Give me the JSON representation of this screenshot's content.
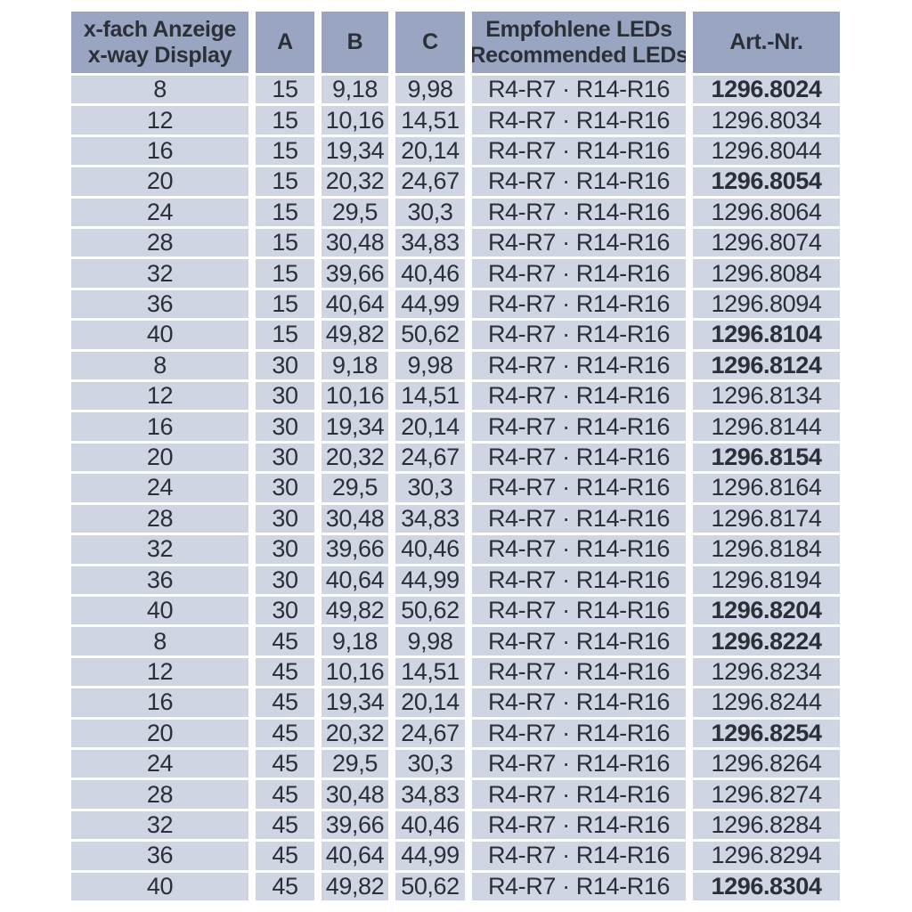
{
  "colors": {
    "header_bg": "#9aa6c1",
    "row_bg": "#cfd5e2",
    "text": "#2b2f38",
    "page_bg": "#ffffff"
  },
  "table": {
    "header": {
      "display_line1": "x-fach Anzeige",
      "display_line2": "x-way Display",
      "a": "A",
      "b": "B",
      "c": "C",
      "leds_line1": "Empfohlene LEDs",
      "leds_line2": "Recommended LEDs",
      "art": "Art.-Nr."
    },
    "rows": [
      {
        "display": "8",
        "a": "15",
        "b": "9,18",
        "c": "9,98",
        "leds": "R4-R7 · R14-R16",
        "art": "1296.8024",
        "bold": true
      },
      {
        "display": "12",
        "a": "15",
        "b": "10,16",
        "c": "14,51",
        "leds": "R4-R7 · R14-R16",
        "art": "1296.8034",
        "bold": false
      },
      {
        "display": "16",
        "a": "15",
        "b": "19,34",
        "c": "20,14",
        "leds": "R4-R7 · R14-R16",
        "art": "1296.8044",
        "bold": false
      },
      {
        "display": "20",
        "a": "15",
        "b": "20,32",
        "c": "24,67",
        "leds": "R4-R7 · R14-R16",
        "art": "1296.8054",
        "bold": true
      },
      {
        "display": "24",
        "a": "15",
        "b": "29,5",
        "c": "30,3",
        "leds": "R4-R7 · R14-R16",
        "art": "1296.8064",
        "bold": false
      },
      {
        "display": "28",
        "a": "15",
        "b": "30,48",
        "c": "34,83",
        "leds": "R4-R7 · R14-R16",
        "art": "1296.8074",
        "bold": false
      },
      {
        "display": "32",
        "a": "15",
        "b": "39,66",
        "c": "40,46",
        "leds": "R4-R7 · R14-R16",
        "art": "1296.8084",
        "bold": false
      },
      {
        "display": "36",
        "a": "15",
        "b": "40,64",
        "c": "44,99",
        "leds": "R4-R7 · R14-R16",
        "art": "1296.8094",
        "bold": false
      },
      {
        "display": "40",
        "a": "15",
        "b": "49,82",
        "c": "50,62",
        "leds": "R4-R7 · R14-R16",
        "art": "1296.8104",
        "bold": true
      },
      {
        "display": "8",
        "a": "30",
        "b": "9,18",
        "c": "9,98",
        "leds": "R4-R7 · R14-R16",
        "art": "1296.8124",
        "bold": true
      },
      {
        "display": "12",
        "a": "30",
        "b": "10,16",
        "c": "14,51",
        "leds": "R4-R7 · R14-R16",
        "art": "1296.8134",
        "bold": false
      },
      {
        "display": "16",
        "a": "30",
        "b": "19,34",
        "c": "20,14",
        "leds": "R4-R7 · R14-R16",
        "art": "1296.8144",
        "bold": false
      },
      {
        "display": "20",
        "a": "30",
        "b": "20,32",
        "c": "24,67",
        "leds": "R4-R7 · R14-R16",
        "art": "1296.8154",
        "bold": true
      },
      {
        "display": "24",
        "a": "30",
        "b": "29,5",
        "c": "30,3",
        "leds": "R4-R7 · R14-R16",
        "art": "1296.8164",
        "bold": false
      },
      {
        "display": "28",
        "a": "30",
        "b": "30,48",
        "c": "34,83",
        "leds": "R4-R7 · R14-R16",
        "art": "1296.8174",
        "bold": false
      },
      {
        "display": "32",
        "a": "30",
        "b": "39,66",
        "c": "40,46",
        "leds": "R4-R7 · R14-R16",
        "art": "1296.8184",
        "bold": false
      },
      {
        "display": "36",
        "a": "30",
        "b": "40,64",
        "c": "44,99",
        "leds": "R4-R7 · R14-R16",
        "art": "1296.8194",
        "bold": false
      },
      {
        "display": "40",
        "a": "30",
        "b": "49,82",
        "c": "50,62",
        "leds": "R4-R7 · R14-R16",
        "art": "1296.8204",
        "bold": true
      },
      {
        "display": "8",
        "a": "45",
        "b": "9,18",
        "c": "9,98",
        "leds": "R4-R7 · R14-R16",
        "art": "1296.8224",
        "bold": true
      },
      {
        "display": "12",
        "a": "45",
        "b": "10,16",
        "c": "14,51",
        "leds": "R4-R7 · R14-R16",
        "art": "1296.8234",
        "bold": false
      },
      {
        "display": "16",
        "a": "45",
        "b": "19,34",
        "c": "20,14",
        "leds": "R4-R7 · R14-R16",
        "art": "1296.8244",
        "bold": false
      },
      {
        "display": "20",
        "a": "45",
        "b": "20,32",
        "c": "24,67",
        "leds": "R4-R7 · R14-R16",
        "art": "1296.8254",
        "bold": true
      },
      {
        "display": "24",
        "a": "45",
        "b": "29,5",
        "c": "30,3",
        "leds": "R4-R7 · R14-R16",
        "art": "1296.8264",
        "bold": false
      },
      {
        "display": "28",
        "a": "45",
        "b": "30,48",
        "c": "34,83",
        "leds": "R4-R7 · R14-R16",
        "art": "1296.8274",
        "bold": false
      },
      {
        "display": "32",
        "a": "45",
        "b": "39,66",
        "c": "40,46",
        "leds": "R4-R7 · R14-R16",
        "art": "1296.8284",
        "bold": false
      },
      {
        "display": "36",
        "a": "45",
        "b": "40,64",
        "c": "44,99",
        "leds": "R4-R7 · R14-R16",
        "art": "1296.8294",
        "bold": false
      },
      {
        "display": "40",
        "a": "45",
        "b": "49,82",
        "c": "50,62",
        "leds": "R4-R7 · R14-R16",
        "art": "1296.8304",
        "bold": true
      }
    ]
  }
}
